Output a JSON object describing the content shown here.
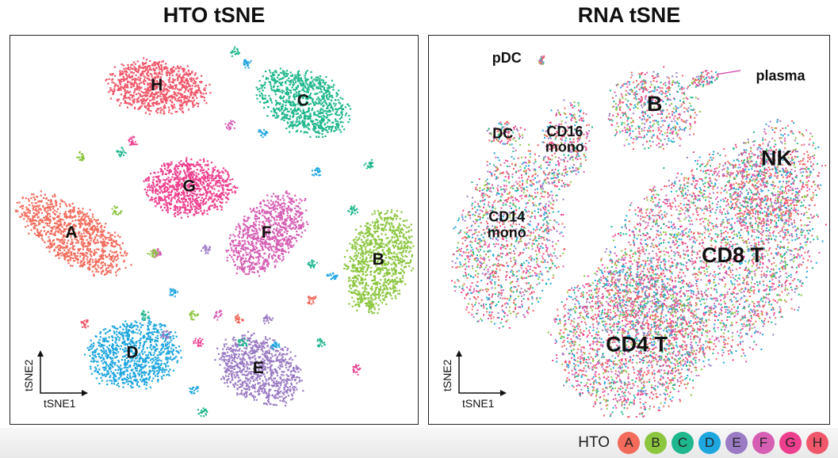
{
  "chart_data": [
    {
      "type": "scatter",
      "title": "HTO tSNE",
      "xlabel": "tSNE1",
      "ylabel": "tSNE2",
      "clusters": [
        {
          "label": "H",
          "hto": "H",
          "cx": 0.36,
          "cy": 0.13,
          "rx": 0.12,
          "ry": 0.065,
          "rot": 5,
          "n": 900
        },
        {
          "label": "C",
          "hto": "C",
          "cx": 0.72,
          "cy": 0.17,
          "rx": 0.115,
          "ry": 0.075,
          "rot": 25,
          "n": 850
        },
        {
          "label": "G",
          "hto": "G",
          "cx": 0.44,
          "cy": 0.39,
          "rx": 0.105,
          "ry": 0.07,
          "rot": 0,
          "n": 850
        },
        {
          "label": "A",
          "hto": "A",
          "cx": 0.15,
          "cy": 0.51,
          "rx": 0.145,
          "ry": 0.068,
          "rot": 32,
          "n": 950
        },
        {
          "label": "F",
          "hto": "F",
          "cx": 0.63,
          "cy": 0.51,
          "rx": 0.115,
          "ry": 0.072,
          "rot": -48,
          "n": 850
        },
        {
          "label": "B",
          "hto": "B",
          "cx": 0.905,
          "cy": 0.58,
          "rx": 0.125,
          "ry": 0.08,
          "rot": -72,
          "n": 950
        },
        {
          "label": "D",
          "hto": "D",
          "cx": 0.3,
          "cy": 0.82,
          "rx": 0.11,
          "ry": 0.085,
          "rot": -10,
          "n": 900
        },
        {
          "label": "E",
          "hto": "E",
          "cx": 0.61,
          "cy": 0.86,
          "rx": 0.105,
          "ry": 0.078,
          "rot": 30,
          "n": 850
        }
      ],
      "doublets": [
        [
          0.55,
          0.04,
          "C"
        ],
        [
          0.58,
          0.07,
          "D"
        ],
        [
          0.54,
          0.23,
          "F"
        ],
        [
          0.62,
          0.25,
          "D"
        ],
        [
          0.3,
          0.27,
          "G"
        ],
        [
          0.17,
          0.31,
          "B"
        ],
        [
          0.75,
          0.35,
          "D"
        ],
        [
          0.88,
          0.33,
          "C"
        ],
        [
          0.26,
          0.45,
          "B"
        ],
        [
          0.84,
          0.45,
          "C"
        ],
        [
          0.36,
          0.56,
          "F"
        ],
        [
          0.48,
          0.55,
          "E"
        ],
        [
          0.74,
          0.59,
          "C"
        ],
        [
          0.79,
          0.62,
          "D"
        ],
        [
          0.4,
          0.66,
          "D"
        ],
        [
          0.33,
          0.72,
          "C"
        ],
        [
          0.18,
          0.74,
          "H"
        ],
        [
          0.45,
          0.72,
          "B"
        ],
        [
          0.51,
          0.72,
          "F"
        ],
        [
          0.56,
          0.73,
          "A"
        ],
        [
          0.63,
          0.73,
          "E"
        ],
        [
          0.74,
          0.68,
          "A"
        ],
        [
          0.38,
          0.77,
          "E"
        ],
        [
          0.46,
          0.79,
          "G"
        ],
        [
          0.57,
          0.79,
          "C"
        ],
        [
          0.65,
          0.8,
          "D"
        ],
        [
          0.76,
          0.79,
          "C"
        ],
        [
          0.85,
          0.86,
          "G"
        ],
        [
          0.45,
          0.91,
          "D"
        ],
        [
          0.47,
          0.97,
          "C"
        ],
        [
          0.35,
          0.56,
          "B"
        ],
        [
          0.27,
          0.3,
          "C"
        ]
      ]
    },
    {
      "type": "scatter",
      "title": "RNA tSNE",
      "xlabel": "tSNE1",
      "ylabel": "tSNE2",
      "clusters": [
        {
          "label": "pDC",
          "cx": 0.28,
          "cy": 0.06,
          "rx": 0.008,
          "ry": 0.012,
          "rot": 0,
          "n": 25,
          "lx": 0.195,
          "ly": 0.06,
          "fs": 18
        },
        {
          "label": "plasma",
          "cx": 0.69,
          "cy": 0.11,
          "rx": 0.04,
          "ry": 0.018,
          "rot": -20,
          "n": 80,
          "lx": 0.88,
          "ly": 0.106,
          "fs": 18
        },
        {
          "label": "B",
          "cx": 0.56,
          "cy": 0.19,
          "rx": 0.11,
          "ry": 0.1,
          "rot": 0,
          "n": 550,
          "lx": 0.565,
          "ly": 0.18,
          "fs": 27
        },
        {
          "label": "DC",
          "cx": 0.19,
          "cy": 0.25,
          "rx": 0.05,
          "ry": 0.03,
          "rot": 0,
          "n": 90,
          "lx": 0.185,
          "ly": 0.255,
          "fs": 18
        },
        {
          "label": "CD16\nmono",
          "cx": 0.34,
          "cy": 0.28,
          "rx": 0.06,
          "ry": 0.11,
          "rot": 10,
          "n": 300,
          "lx": 0.34,
          "ly": 0.27,
          "fs": 18
        },
        {
          "label": "CD14\nmono",
          "cx": 0.2,
          "cy": 0.52,
          "rx": 0.13,
          "ry": 0.22,
          "rot": 12,
          "n": 1300,
          "lx": 0.195,
          "ly": 0.49,
          "fs": 18
        },
        {
          "label": "NK",
          "cx": 0.86,
          "cy": 0.36,
          "rx": 0.11,
          "ry": 0.14,
          "rot": 30,
          "n": 650,
          "lx": 0.87,
          "ly": 0.32,
          "fs": 27
        },
        {
          "label": "CD8 T",
          "cx": 0.7,
          "cy": 0.58,
          "rx": 0.3,
          "ry": 0.23,
          "rot": -48,
          "n": 3200,
          "lx": 0.76,
          "ly": 0.57,
          "fs": 27
        },
        {
          "label": "CD4 T",
          "cx": 0.5,
          "cy": 0.78,
          "rx": 0.18,
          "ry": 0.19,
          "rot": -20,
          "n": 1800,
          "lx": 0.52,
          "ly": 0.8,
          "fs": 27
        }
      ]
    }
  ],
  "legend": {
    "title": "HTO",
    "items": [
      {
        "label": "A",
        "color": "#f26b5b"
      },
      {
        "label": "B",
        "color": "#8cc63f"
      },
      {
        "label": "C",
        "color": "#1fb78d"
      },
      {
        "label": "D",
        "color": "#1ea6df"
      },
      {
        "label": "E",
        "color": "#9b7bc4"
      },
      {
        "label": "F",
        "color": "#d65fb4"
      },
      {
        "label": "G",
        "color": "#ee3f8e"
      },
      {
        "label": "H",
        "color": "#f0576a"
      }
    ]
  },
  "colors": {
    "A": "#f26b5b",
    "B": "#8cc63f",
    "C": "#1fb78d",
    "D": "#1ea6df",
    "E": "#9b7bc4",
    "F": "#d65fb4",
    "G": "#ee3f8e",
    "H": "#f0576a"
  }
}
